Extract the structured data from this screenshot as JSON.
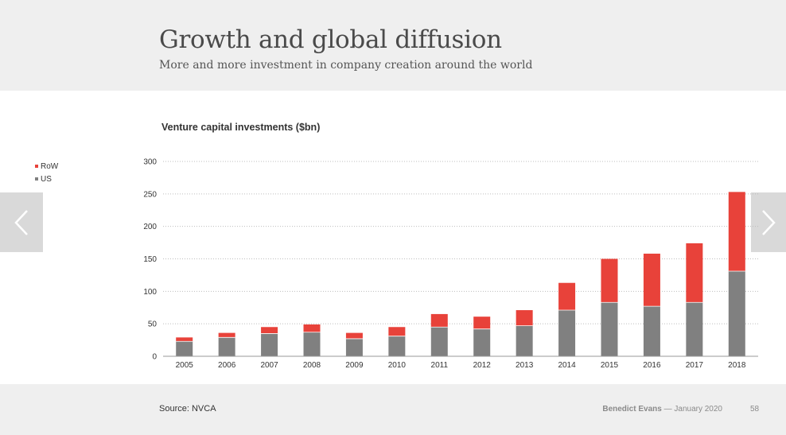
{
  "slide": {
    "title": "Growth and global diffusion",
    "subtitle": "More and more investment in company creation around the world",
    "source": "Source: NVCA",
    "author": "Benedict Evans",
    "date": "— January 2020",
    "page_number": "58"
  },
  "navigation": {
    "prev_icon": "chevron-left-icon",
    "next_icon": "chevron-right-icon"
  },
  "colors": {
    "row": "#e8423a",
    "us": "#808080",
    "grid": "#bdbdbd",
    "axis": "#999999"
  },
  "chart_data": {
    "type": "bar",
    "stacked": true,
    "title": "Venture capital investments ($bn)",
    "xlabel": "",
    "ylabel": "",
    "ylim": [
      0,
      300
    ],
    "yticks": [
      0,
      50,
      100,
      150,
      200,
      250,
      300
    ],
    "grid": true,
    "legend_position": "left",
    "categories": [
      "2005",
      "2006",
      "2007",
      "2008",
      "2009",
      "2010",
      "2011",
      "2012",
      "2013",
      "2014",
      "2015",
      "2016",
      "2017",
      "2018"
    ],
    "series": [
      {
        "name": "US",
        "values": [
          23,
          29,
          35,
          37,
          27,
          31,
          45,
          42,
          47,
          71,
          83,
          77,
          83,
          131
        ]
      },
      {
        "name": "RoW",
        "values": [
          6,
          7,
          10,
          12,
          9,
          14,
          20,
          19,
          24,
          42,
          67,
          81,
          91,
          122
        ]
      }
    ],
    "legend": [
      "RoW",
      "US"
    ]
  }
}
